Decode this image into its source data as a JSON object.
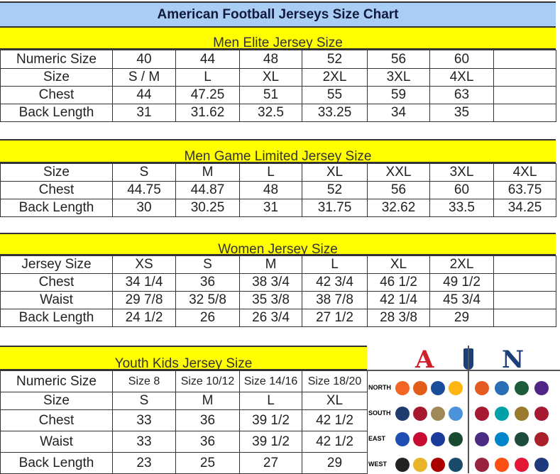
{
  "title": "American Football Jerseys Size Chart",
  "sections": [
    {
      "heading": "Men Elite Jersey Size",
      "rows": [
        [
          "Numeric Size",
          "40",
          "44",
          "48",
          "52",
          "56",
          "60",
          ""
        ],
        [
          "Size",
          "S / M",
          "L",
          "XL",
          "2XL",
          "3XL",
          "4XL",
          ""
        ],
        [
          "Chest",
          "44",
          "47.25",
          "51",
          "55",
          "59",
          "63",
          ""
        ],
        [
          "Back Length",
          "31",
          "31.62",
          "32.5",
          "33.25",
          "34",
          "35",
          ""
        ]
      ]
    },
    {
      "heading": "Men Game Limited Jersey Size",
      "rows": [
        [
          "Size",
          "S",
          "M",
          "L",
          "XL",
          "XXL",
          "3XL",
          "4XL"
        ],
        [
          "Chest",
          "44.75",
          "44.87",
          "48",
          "52",
          "56",
          "60",
          "63.75"
        ],
        [
          "Back Length",
          "30",
          "30.25",
          "31",
          "31.75",
          "32.62",
          "33.5",
          "34.25"
        ]
      ]
    },
    {
      "heading": "Women Jersey Size",
      "rows": [
        [
          "Jersey Size",
          "XS",
          "S",
          "M",
          "L",
          "XL",
          "2XL",
          ""
        ],
        [
          "Chest",
          "34 1/4",
          "36",
          "38 3/4",
          "42 3/4",
          "46 1/2",
          "49 1/2",
          ""
        ],
        [
          "Waist",
          "29 7/8",
          "32 5/8",
          "35 3/8",
          "38 7/8",
          "42 1/4",
          "45 3/4",
          ""
        ],
        [
          "Back Length",
          "24 1/2",
          "26",
          "26 3/4",
          "27 1/2",
          "28 3/8",
          "29",
          ""
        ]
      ]
    },
    {
      "heading": "Youth Kids Jersey Size",
      "rows": [
        [
          "Numeric Size",
          "Size 8",
          "Size 10/12",
          "Size 14/16",
          "Size 18/20"
        ],
        [
          "Size",
          "S",
          "M",
          "L",
          "XL"
        ],
        [
          "Chest",
          "33",
          "36",
          "39 1/2",
          "42 1/2"
        ],
        [
          "Waist",
          "33",
          "36",
          "39 1/2",
          "42 1/2"
        ],
        [
          "Back Length",
          "23",
          "25",
          "27",
          "29"
        ]
      ]
    }
  ],
  "logos": {
    "afc": "A",
    "nfc": "N",
    "divisions": [
      "NORTH",
      "SOUTH",
      "EAST",
      "WEST"
    ],
    "colors": {
      "afc": "#d0202a",
      "nfc": "#1b3f7a"
    },
    "team_colors": [
      [
        "#f26522",
        "#e25c1a",
        "#1b4c9a",
        "#ffb612",
        "#e65b1f",
        "#2a6fb5",
        "#1d5c3a",
        "#4f2683"
      ],
      [
        "#1f3a6e",
        "#a71930",
        "#9f8958",
        "#4b92db",
        "#a71930",
        "#00a0a8",
        "#9a7a2c",
        "#a71930"
      ],
      [
        "#1f4fb5",
        "#c60c30",
        "#1b3b9a",
        "#1a4a32",
        "#4b2c82",
        "#0085ca",
        "#1d4d3a",
        "#a91f2a"
      ],
      [
        "#222222",
        "#e8b52a",
        "#aa0000",
        "#1a4a6a",
        "#97233f",
        "#fb4f14",
        "#e31837",
        "#1d3a7a"
      ]
    ]
  }
}
